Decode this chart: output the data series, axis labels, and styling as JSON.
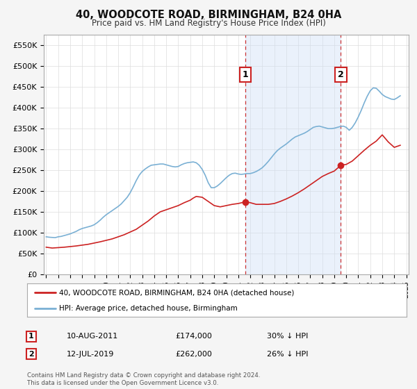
{
  "title": "40, WOODCOTE ROAD, BIRMINGHAM, B24 0HA",
  "subtitle": "Price paid vs. HM Land Registry's House Price Index (HPI)",
  "ylabel_ticks": [
    "£0",
    "£50K",
    "£100K",
    "£150K",
    "£200K",
    "£250K",
    "£300K",
    "£350K",
    "£400K",
    "£450K",
    "£500K",
    "£550K"
  ],
  "ytick_values": [
    0,
    50000,
    100000,
    150000,
    200000,
    250000,
    300000,
    350000,
    400000,
    450000,
    500000,
    550000
  ],
  "ylim": [
    0,
    575000
  ],
  "xlim_start": 1995,
  "xlim_end": 2025,
  "background_color": "#f5f5f5",
  "plot_bg_color": "#ffffff",
  "grid_color": "#dddddd",
  "hpi_color": "#7ab0d4",
  "price_color": "#cc2222",
  "marker1_date": 2011.6,
  "marker1_price": 174000,
  "marker1_label": "1",
  "marker2_date": 2019.55,
  "marker2_price": 262000,
  "marker2_label": "2",
  "vline_color": "#cc3333",
  "span_color": "#ccddf5",
  "span_alpha": 0.4,
  "annotation_box_color": "#cc2222",
  "legend_text1": "40, WOODCOTE ROAD, BIRMINGHAM, B24 0HA (detached house)",
  "legend_text2": "HPI: Average price, detached house, Birmingham",
  "note1_num": "1",
  "note1_date": "10-AUG-2011",
  "note1_price": "£174,000",
  "note1_hpi": "30% ↓ HPI",
  "note2_num": "2",
  "note2_date": "12-JUL-2019",
  "note2_price": "£262,000",
  "note2_hpi": "26% ↓ HPI",
  "footer": "Contains HM Land Registry data © Crown copyright and database right 2024.\nThis data is licensed under the Open Government Licence v3.0.",
  "hpi_data": {
    "years": [
      1995.0,
      1995.25,
      1995.5,
      1995.75,
      1996.0,
      1996.25,
      1996.5,
      1996.75,
      1997.0,
      1997.25,
      1997.5,
      1997.75,
      1998.0,
      1998.25,
      1998.5,
      1998.75,
      1999.0,
      1999.25,
      1999.5,
      1999.75,
      2000.0,
      2000.25,
      2000.5,
      2000.75,
      2001.0,
      2001.25,
      2001.5,
      2001.75,
      2002.0,
      2002.25,
      2002.5,
      2002.75,
      2003.0,
      2003.25,
      2003.5,
      2003.75,
      2004.0,
      2004.25,
      2004.5,
      2004.75,
      2005.0,
      2005.25,
      2005.5,
      2005.75,
      2006.0,
      2006.25,
      2006.5,
      2006.75,
      2007.0,
      2007.25,
      2007.5,
      2007.75,
      2008.0,
      2008.25,
      2008.5,
      2008.75,
      2009.0,
      2009.25,
      2009.5,
      2009.75,
      2010.0,
      2010.25,
      2010.5,
      2010.75,
      2011.0,
      2011.25,
      2011.5,
      2011.75,
      2012.0,
      2012.25,
      2012.5,
      2012.75,
      2013.0,
      2013.25,
      2013.5,
      2013.75,
      2014.0,
      2014.25,
      2014.5,
      2014.75,
      2015.0,
      2015.25,
      2015.5,
      2015.75,
      2016.0,
      2016.25,
      2016.5,
      2016.75,
      2017.0,
      2017.25,
      2017.5,
      2017.75,
      2018.0,
      2018.25,
      2018.5,
      2018.75,
      2019.0,
      2019.25,
      2019.5,
      2019.75,
      2020.0,
      2020.25,
      2020.5,
      2020.75,
      2021.0,
      2021.25,
      2021.5,
      2021.75,
      2022.0,
      2022.25,
      2022.5,
      2022.75,
      2023.0,
      2023.25,
      2023.5,
      2023.75,
      2024.0,
      2024.25,
      2024.5
    ],
    "values": [
      90000,
      89000,
      88500,
      88000,
      90000,
      91000,
      93000,
      95000,
      97000,
      100000,
      103000,
      107000,
      110000,
      112000,
      114000,
      116000,
      119000,
      124000,
      130000,
      137000,
      143000,
      148000,
      153000,
      158000,
      163000,
      169000,
      177000,
      185000,
      196000,
      210000,
      225000,
      238000,
      247000,
      253000,
      258000,
      262000,
      263000,
      264000,
      265000,
      265000,
      263000,
      261000,
      259000,
      258000,
      259000,
      263000,
      266000,
      268000,
      269000,
      270000,
      268000,
      262000,
      252000,
      238000,
      220000,
      208000,
      208000,
      212000,
      218000,
      225000,
      232000,
      238000,
      242000,
      243000,
      241000,
      240000,
      241000,
      242000,
      242000,
      244000,
      247000,
      251000,
      256000,
      263000,
      271000,
      280000,
      289000,
      297000,
      303000,
      308000,
      313000,
      319000,
      325000,
      330000,
      333000,
      336000,
      339000,
      343000,
      348000,
      353000,
      355000,
      356000,
      354000,
      352000,
      350000,
      350000,
      351000,
      353000,
      355000,
      356000,
      353000,
      346000,
      353000,
      364000,
      378000,
      394000,
      412000,
      428000,
      441000,
      448000,
      447000,
      440000,
      432000,
      427000,
      424000,
      421000,
      420000,
      424000,
      429000
    ]
  },
  "price_data": {
    "years": [
      1995.0,
      1995.5,
      1996.5,
      1997.5,
      1998.5,
      1999.5,
      2000.5,
      2001.5,
      2002.5,
      2003.5,
      2004.0,
      2004.5,
      2005.0,
      2005.5,
      2006.0,
      2006.5,
      2007.0,
      2007.25,
      2007.5,
      2008.0,
      2008.5,
      2009.0,
      2009.5,
      2010.0,
      2010.5,
      2011.0,
      2011.6,
      2012.0,
      2012.5,
      2013.0,
      2013.5,
      2014.0,
      2014.5,
      2015.0,
      2015.5,
      2016.0,
      2016.5,
      2017.0,
      2017.5,
      2018.0,
      2018.5,
      2019.0,
      2019.55,
      2020.0,
      2020.5,
      2021.0,
      2021.5,
      2022.0,
      2022.5,
      2023.0,
      2023.5,
      2024.0,
      2024.5
    ],
    "values": [
      65000,
      63000,
      65000,
      68000,
      72000,
      78000,
      85000,
      95000,
      108000,
      128000,
      140000,
      150000,
      155000,
      160000,
      165000,
      172000,
      178000,
      183000,
      187000,
      185000,
      175000,
      165000,
      162000,
      165000,
      168000,
      170000,
      174000,
      172000,
      168000,
      168000,
      168000,
      170000,
      175000,
      181000,
      188000,
      196000,
      205000,
      215000,
      225000,
      235000,
      242000,
      248000,
      262000,
      264000,
      272000,
      285000,
      298000,
      310000,
      320000,
      335000,
      318000,
      305000,
      310000
    ]
  }
}
